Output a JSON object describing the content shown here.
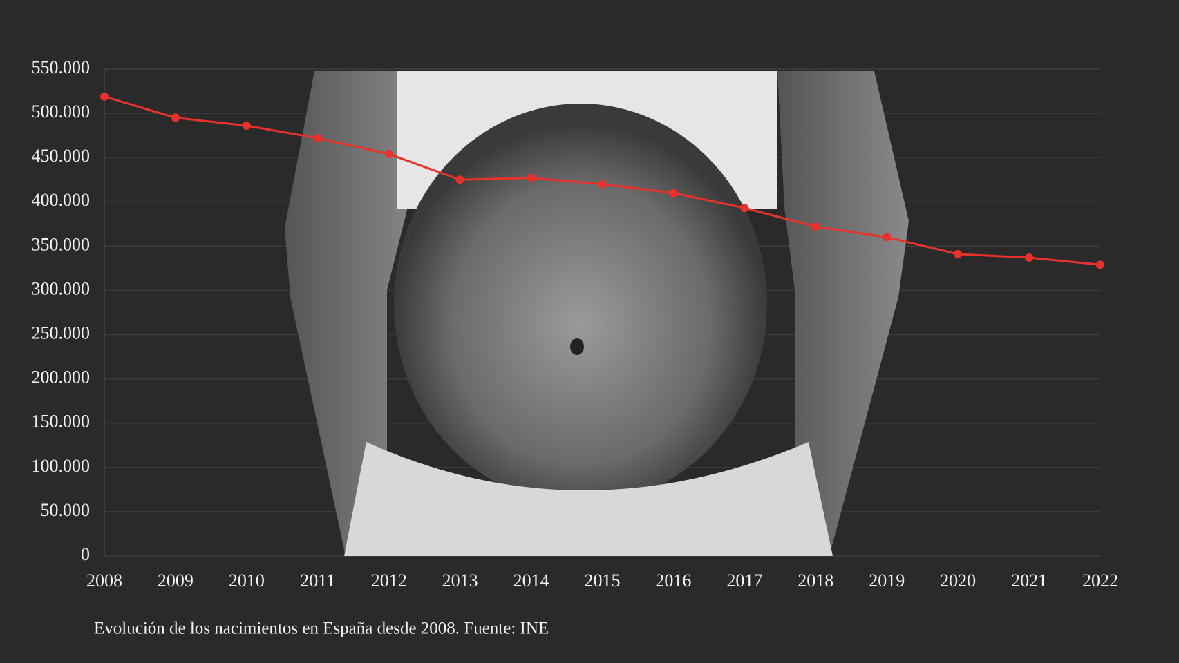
{
  "chart_data": {
    "type": "line",
    "caption": "Evolución de los nacimientos en España desde 2008. Fuente: INE",
    "categories": [
      "2008",
      "2009",
      "2010",
      "2011",
      "2012",
      "2013",
      "2014",
      "2015",
      "2016",
      "2017",
      "2018",
      "2019",
      "2020",
      "2021",
      "2022"
    ],
    "series": [
      {
        "name": "Nacimientos",
        "color": "#e8322b",
        "values": [
          519000,
          495000,
          486000,
          472000,
          454000,
          425000,
          427000,
          420000,
          410000,
          393000,
          372000,
          360000,
          341000,
          337000,
          329000
        ]
      }
    ],
    "ylim": [
      0,
      550000
    ],
    "yticks": [
      0,
      {
        "value": 50000,
        "label": "50.000"
      },
      {
        "value": 100000,
        "label": "100.000"
      },
      {
        "value": 150000,
        "label": "150.000"
      },
      {
        "value": 200000,
        "label": "200.000"
      },
      {
        "value": 250000,
        "label": "250.000"
      },
      {
        "value": 300000,
        "label": "300.000"
      },
      {
        "value": 350000,
        "label": "350.000"
      },
      {
        "value": 400000,
        "label": "400.000"
      },
      {
        "value": 450000,
        "label": "450.000"
      },
      {
        "value": 500000,
        "label": "500.000"
      },
      {
        "value": 550000,
        "label": "550.000"
      }
    ],
    "grid": true
  }
}
